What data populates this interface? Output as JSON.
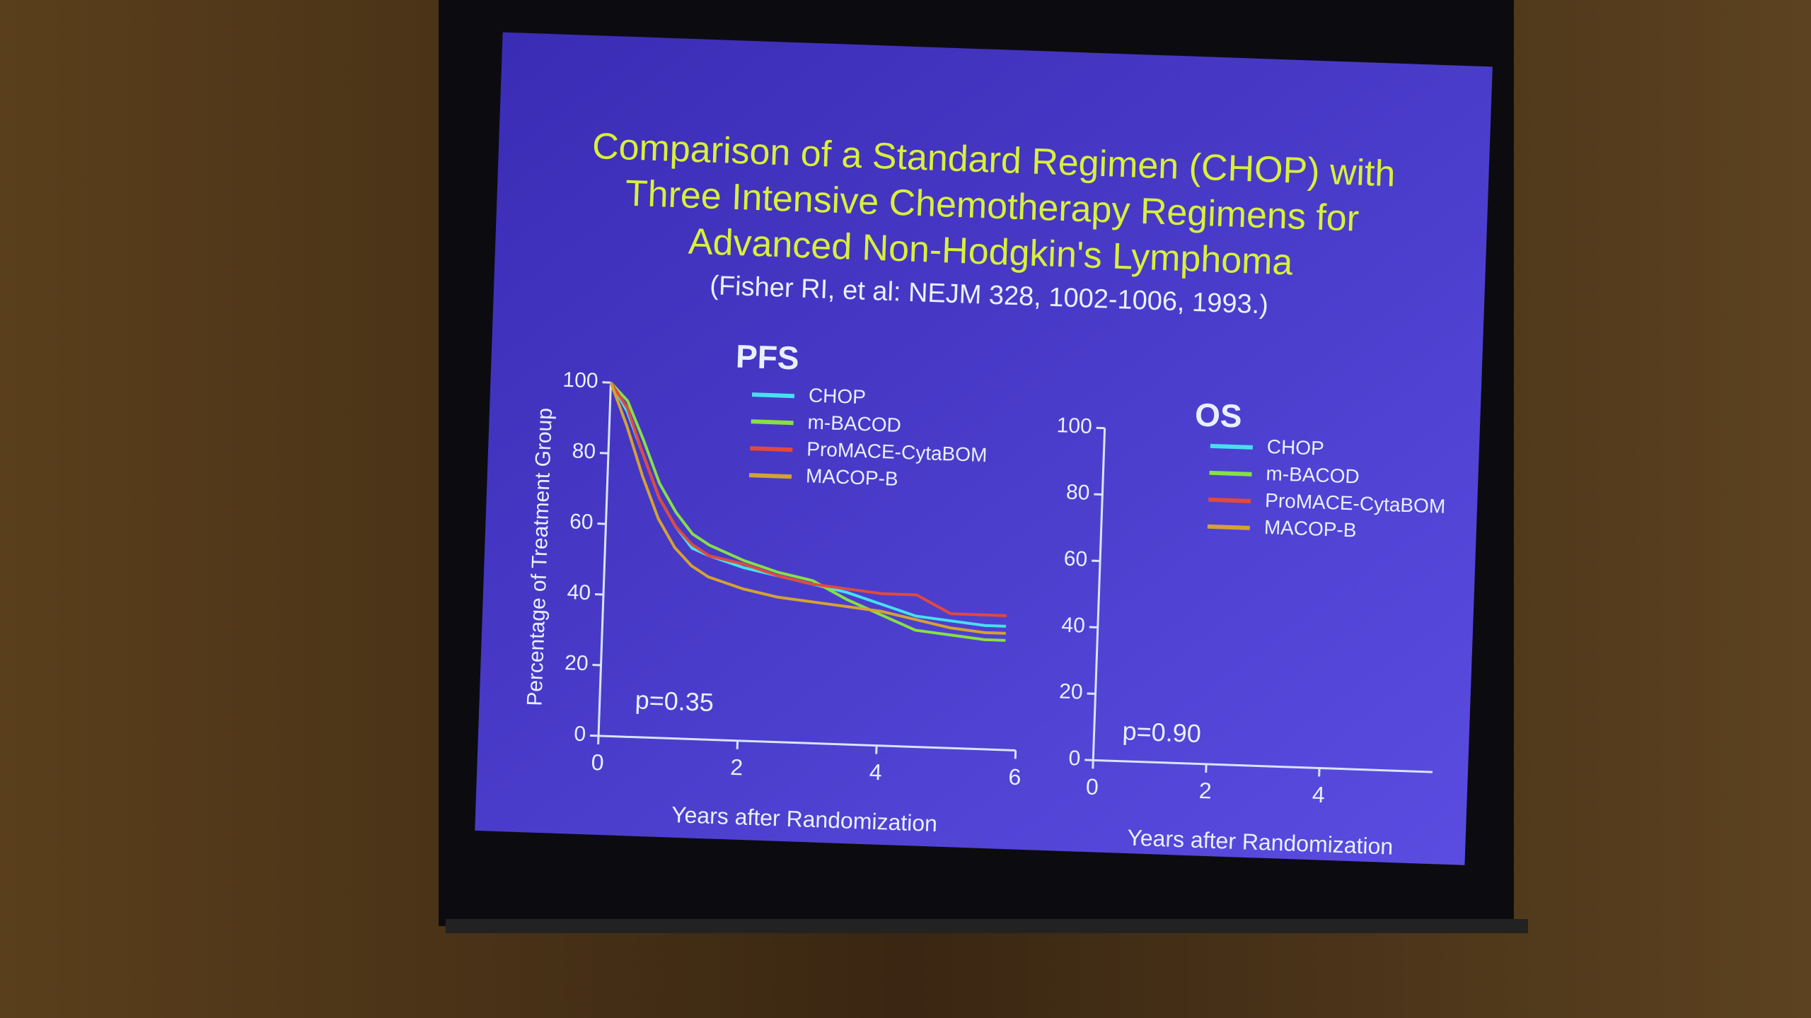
{
  "slide": {
    "title_lines": [
      "Comparison of a Standard Regimen (CHOP) with",
      "Three Intensive Chemotherapy Regimens for",
      "Advanced Non-Hodgkin's Lymphoma"
    ],
    "citation": "(Fisher RI, et al: NEJM 328, 1002-1006, 1993.)"
  },
  "chart_data": [
    {
      "type": "line",
      "title": "PFS",
      "xlabel": "Years after Randomization",
      "ylabel": "Percentage of Treatment Group",
      "annotation": "p=0.35",
      "x": [
        0,
        0.25,
        0.5,
        0.75,
        1,
        1.25,
        1.5,
        2,
        2.5,
        3,
        3.5,
        4,
        4.5,
        5,
        5.5,
        5.8
      ],
      "xlim": [
        0,
        6
      ],
      "xticks": [
        0,
        2,
        4,
        6
      ],
      "ylim": [
        0,
        100
      ],
      "yticks": [
        0,
        20,
        40,
        60,
        80,
        100
      ],
      "series": [
        {
          "name": "CHOP",
          "color": "#46e0f0",
          "values": [
            100,
            92,
            80,
            68,
            60,
            54,
            52,
            49,
            47,
            45,
            43,
            40,
            37,
            36,
            35,
            35
          ]
        },
        {
          "name": "m-BACOD",
          "color": "#86e046",
          "values": [
            100,
            95,
            84,
            72,
            64,
            58,
            55,
            51,
            48,
            46,
            41,
            37,
            33,
            32,
            31,
            31
          ]
        },
        {
          "name": "ProMACE-CytaBOM",
          "color": "#e04a3c",
          "values": [
            100,
            93,
            80,
            68,
            60,
            55,
            52,
            50,
            47,
            45,
            44,
            43,
            43,
            38,
            38,
            38
          ]
        },
        {
          "name": "MACOP-B",
          "color": "#d4a232",
          "values": [
            100,
            88,
            74,
            62,
            54,
            49,
            46,
            43,
            41,
            40,
            39,
            38,
            36,
            34,
            33,
            33
          ]
        }
      ]
    },
    {
      "type": "line",
      "title": "OS",
      "xlabel": "Years after Randomization",
      "annotation": "p=0.90",
      "xlim": [
        0,
        6
      ],
      "xticks": [
        0,
        2,
        4
      ],
      "ylim": [
        0,
        100
      ],
      "yticks": [
        0,
        20,
        40,
        60,
        80,
        100
      ],
      "series": [
        {
          "name": "CHOP",
          "color": "#46e0f0"
        },
        {
          "name": "m-BACOD",
          "color": "#86e046"
        },
        {
          "name": "ProMACE-CytaBOM",
          "color": "#e04a3c"
        },
        {
          "name": "MACOP-B",
          "color": "#d4a232"
        }
      ]
    }
  ]
}
